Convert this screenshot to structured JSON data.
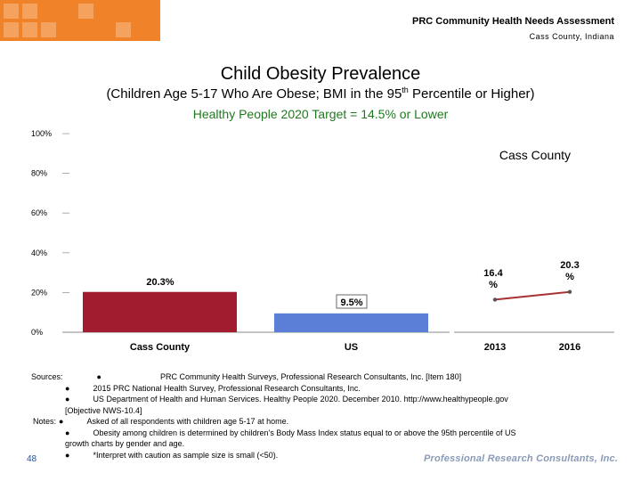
{
  "header": {
    "title": "PRC Community Health Needs Assessment",
    "subtitle": "Cass County, Indiana"
  },
  "chart_data": {
    "type": "bar",
    "title": "Child Obesity Prevalence",
    "subtitle_prefix": "(Children Age 5-17 Who Are Obese; BMI in the 95",
    "subtitle_sup": "th",
    "subtitle_suffix": " Percentile or Higher)",
    "target_note": "Healthy People 2020 Target = 14.5% or Lower",
    "ylim": [
      0,
      100
    ],
    "yticks": [
      "100%",
      "80%",
      "60%",
      "40%",
      "20%",
      "0%"
    ],
    "ytick_values": [
      100,
      80,
      60,
      40,
      20,
      0
    ],
    "categories": [
      "Cass County",
      "US"
    ],
    "values": [
      20.3,
      9.5
    ],
    "value_labels": [
      "20.3%",
      "9.5%"
    ],
    "bar_colors": [
      "#a01c2e",
      "#5b7fd6"
    ],
    "trend": {
      "series_name": "Cass County",
      "x": [
        "2013",
        "2016"
      ],
      "values": [
        16.4,
        20.3
      ],
      "value_labels": [
        "16.4 %",
        "20.3 %"
      ],
      "line_color": "#a83232"
    }
  },
  "notes": {
    "sources_label": "Sources:",
    "source_lines": [
      "PRC Community Health Surveys, Professional Research Consultants, Inc. [Item 180]",
      "2015 PRC National Health Survey, Professional Research Consultants, Inc.",
      "US Department of Health and Human Services. Healthy People 2020. December 2010. http://www.healthypeople.gov",
      "[Objective NWS-10.4]"
    ],
    "notes_label": "Notes:",
    "note_lines": [
      "Asked of all respondents with children age 5-17 at home.",
      "Obesity among children is determined by children’s Body Mass Index status equal to or above the 95th percentile of US",
      "growth charts by gender and age.",
      "*Interpret with caution as sample size is small (<50)."
    ],
    "bullet": "●"
  },
  "footer": {
    "page_number": "48",
    "company": "Professional Research Consultants, Inc."
  }
}
